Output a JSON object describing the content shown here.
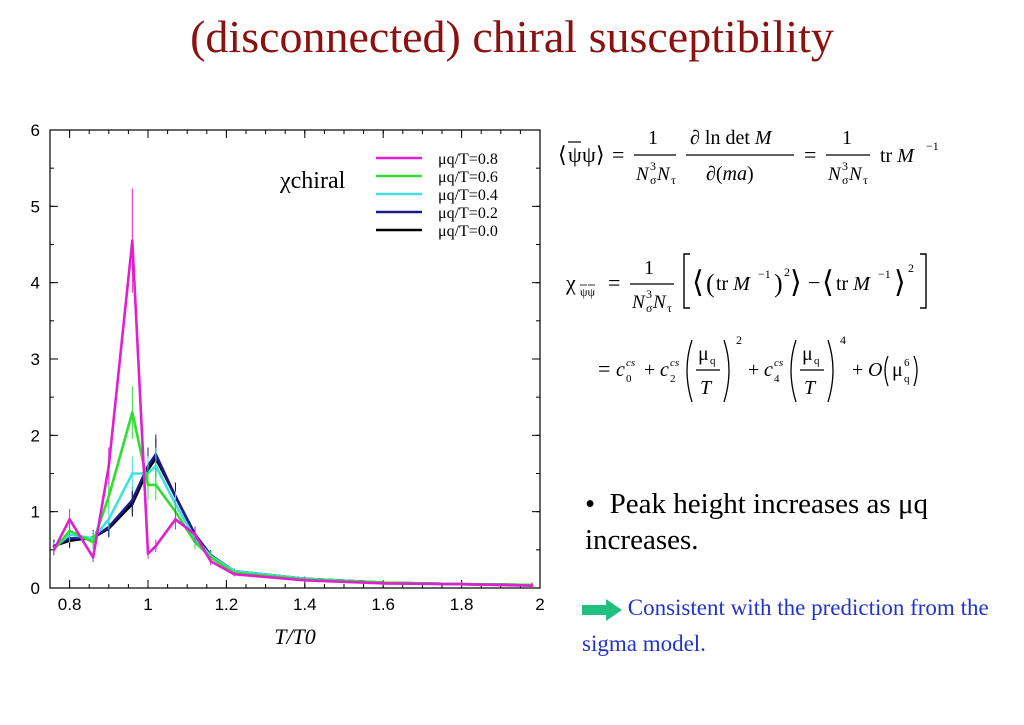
{
  "title": "(disconnected) chiral susceptibility",
  "chart_data": {
    "type": "line",
    "annotation": "χchiral",
    "xlabel": "T/T0",
    "xlim": [
      0.75,
      2.0
    ],
    "ylim": [
      0,
      6
    ],
    "xticks": [
      0.8,
      1,
      1.2,
      1.4,
      1.6,
      1.8,
      2
    ],
    "xtick_labels": [
      "0.8",
      "1",
      "1.2",
      "1.4",
      "1.6",
      "1.8",
      "2"
    ],
    "yticks": [
      0,
      1,
      2,
      3,
      4,
      5,
      6
    ],
    "ytick_labels": [
      "0",
      "1",
      "2",
      "3",
      "4",
      "5",
      "6"
    ],
    "legend_position": "top-right",
    "series": [
      {
        "name": "μq/T=0.8",
        "color": "#e020d0",
        "x": [
          0.76,
          0.8,
          0.86,
          0.9,
          0.96,
          1.0,
          1.02,
          1.07,
          1.12,
          1.16,
          1.22,
          1.4,
          1.6,
          1.8,
          1.98
        ],
        "y": [
          0.5,
          0.9,
          0.4,
          1.6,
          4.55,
          0.45,
          0.55,
          0.9,
          0.7,
          0.35,
          0.18,
          0.1,
          0.06,
          0.05,
          0.03
        ]
      },
      {
        "name": "μq/T=0.6",
        "color": "#30dd30",
        "x": [
          0.76,
          0.8,
          0.86,
          0.9,
          0.96,
          1.0,
          1.02,
          1.07,
          1.12,
          1.16,
          1.22,
          1.4,
          1.6,
          1.8,
          1.98
        ],
        "y": [
          0.5,
          0.75,
          0.6,
          1.2,
          2.3,
          1.35,
          1.35,
          1.0,
          0.6,
          0.4,
          0.2,
          0.11,
          0.07,
          0.05,
          0.04
        ]
      },
      {
        "name": "μq/T=0.4",
        "color": "#40e0e0",
        "x": [
          0.76,
          0.8,
          0.86,
          0.9,
          0.96,
          1.0,
          1.02,
          1.07,
          1.12,
          1.16,
          1.22,
          1.4,
          1.6,
          1.8,
          1.98
        ],
        "y": [
          0.52,
          0.7,
          0.65,
          0.9,
          1.5,
          1.5,
          1.6,
          1.1,
          0.65,
          0.42,
          0.22,
          0.12,
          0.07,
          0.05,
          0.04
        ]
      },
      {
        "name": "μq/T=0.2",
        "color": "#1a1a8c",
        "x": [
          0.76,
          0.8,
          0.86,
          0.9,
          0.96,
          1.0,
          1.02,
          1.07,
          1.12,
          1.16,
          1.22,
          1.4,
          1.6,
          1.8,
          1.98
        ],
        "y": [
          0.55,
          0.65,
          0.65,
          0.8,
          1.15,
          1.6,
          1.75,
          1.2,
          0.7,
          0.42,
          0.22,
          0.12,
          0.07,
          0.05,
          0.04
        ]
      },
      {
        "name": "μq/T=0.0",
        "color": "#000000",
        "x": [
          0.76,
          0.8,
          0.86,
          0.9,
          0.96,
          1.0,
          1.02,
          1.07,
          1.12,
          1.16,
          1.22,
          1.4,
          1.6,
          1.8,
          1.98
        ],
        "y": [
          0.55,
          0.62,
          0.66,
          0.78,
          1.1,
          1.55,
          1.7,
          1.2,
          0.7,
          0.43,
          0.22,
          0.12,
          0.07,
          0.05,
          0.04
        ]
      }
    ]
  },
  "equations": {
    "eq1": "⟨ψψ⟩ = (1/(Nσ³Nτ)) ∂ln det M/∂(ma) = (1/(Nσ³Nτ)) tr M⁻¹",
    "eq2": "χψψ = (1/(Nσ³Nτ)) [ ⟨(tr M⁻¹)²⟩ − ⟨tr M⁻¹⟩² ]",
    "eq3": "= c0cs + c2cs (μq/T)² + c4cs (μq/T)⁴ + O(μq⁶)"
  },
  "bullet_text": "Peak height increases as μq increases.",
  "conclusion_text": "Consistent with the prediction from the sigma model.",
  "colors": {
    "title": "#8B1010",
    "conclusion": "#2233cc",
    "arrow": "#20c080"
  }
}
